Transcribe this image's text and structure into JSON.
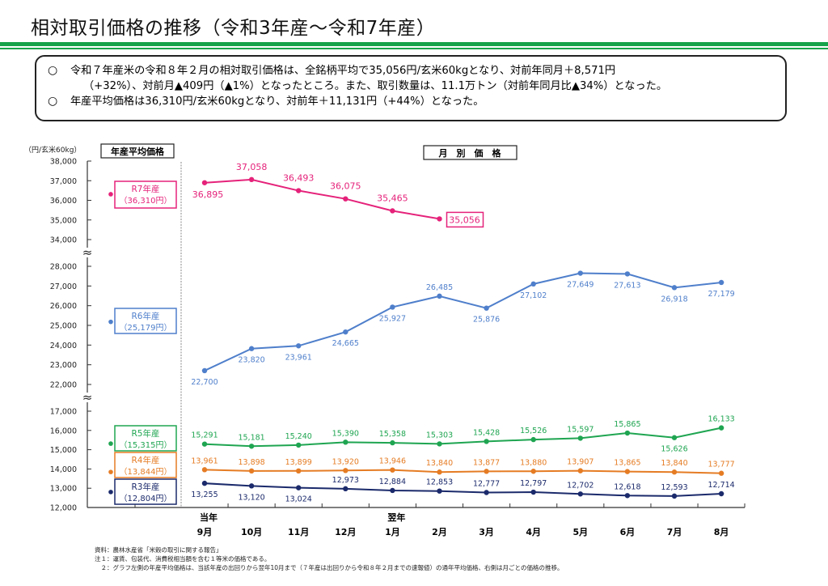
{
  "title": "相対取引価格の推移（令和3年産～令和7年産）",
  "summary": {
    "bullet_symbol": "○",
    "line1": "令和７年産米の令和８年２月の相対取引価格は、全銘柄平均で35,056円/玄米60kgとなり、対前年同月＋8,571円",
    "line1_cont": "（+32%）、対前月▲409円（▲1%）となったところ。また、取引数量は、11.1万トン（対前年同月比▲34%）となった。",
    "line2": "年産平均価格は36,310円/玄米60kgとなり、対前年＋11,131円（+44%）となった。"
  },
  "footer": {
    "source": "資料：農林水産省「米穀の取引に関する報告」",
    "note1": "注１：運賃、包装代、消費税相当額を含む１等米の価格である。",
    "note2": "　２：グラフ左側の年産平均価格は、当該年産の出回りから翌年10月まで（７年産は出回りから令和８年２月までの速報値）の通年平均価格、右側は月ごとの価格の推移。"
  },
  "chart_data": {
    "type": "line",
    "title": "相対取引価格の推移（令和3年産～令和7年産）",
    "ylabel": "（円/玄米60kg）",
    "xlabel": "",
    "left_panel_label": "年産平均価格",
    "right_panel_label": "月　別　価　格",
    "x_year_labels": [
      {
        "index": 0,
        "label": "当年"
      },
      {
        "index": 4,
        "label": "翌年"
      }
    ],
    "categories": [
      "9月",
      "10月",
      "11月",
      "12月",
      "1月",
      "2月",
      "3月",
      "4月",
      "5月",
      "6月",
      "7月",
      "8月"
    ],
    "axis_break_symbol": "≈",
    "y_segments": [
      {
        "ylim": [
          34000,
          38000
        ],
        "ticks": [
          "34,000",
          "35,000",
          "36,000",
          "37,000",
          "38,000"
        ],
        "tick_values": [
          34000,
          35000,
          36000,
          37000,
          38000
        ]
      },
      {
        "ylim": [
          22000,
          28000
        ],
        "ticks": [
          "22,000",
          "23,000",
          "24,000",
          "25,000",
          "26,000",
          "27,000",
          "28,000"
        ],
        "tick_values": [
          22000,
          23000,
          24000,
          25000,
          26000,
          27000,
          28000
        ]
      },
      {
        "ylim": [
          12000,
          17000
        ],
        "ticks": [
          "12,000",
          "13,000",
          "14,000",
          "15,000",
          "16,000",
          "17,000"
        ],
        "tick_values": [
          12000,
          13000,
          14000,
          15000,
          16000,
          17000
        ]
      }
    ],
    "series": [
      {
        "name": "R7年産",
        "annual_avg": 36310,
        "annual_label": "（36,310円）",
        "color": "#e5227a",
        "segment": 0,
        "values": [
          36895,
          37058,
          36493,
          36075,
          35465,
          35056,
          null,
          null,
          null,
          null,
          null,
          null
        ],
        "labels": [
          "36,895",
          "37,058",
          "36,493",
          "36,075",
          "35,465",
          "35,056"
        ],
        "label_pos": [
          "below",
          "above",
          "above",
          "above",
          "above",
          "right-boxed"
        ]
      },
      {
        "name": "R6年産",
        "annual_avg": 25179,
        "annual_label": "（25,179円）",
        "color": "#4f7fcb",
        "segment": 1,
        "values": [
          22700,
          23820,
          23961,
          24665,
          25927,
          26485,
          25876,
          27102,
          27649,
          27613,
          26918,
          27179
        ],
        "labels": [
          "22,700",
          "23,820",
          "23,961",
          "24,665",
          "25,927",
          "26,485",
          "25,876",
          "27,102",
          "27,649",
          "27,613",
          "26,918",
          "27,179"
        ],
        "label_pos": [
          "below",
          "below",
          "below",
          "below",
          "below",
          "above",
          "below",
          "below",
          "below",
          "below",
          "below",
          "below"
        ]
      },
      {
        "name": "R5年産",
        "annual_avg": 15315,
        "annual_label": "（15,315円）",
        "color": "#1fa551",
        "segment": 2,
        "values": [
          15291,
          15181,
          15240,
          15390,
          15358,
          15303,
          15428,
          15526,
          15597,
          15865,
          15626,
          16133
        ],
        "labels": [
          "15,291",
          "15,181",
          "15,240",
          "15,390",
          "15,358",
          "15,303",
          "15,428",
          "15,526",
          "15,597",
          "15,865",
          "15,626",
          "16,133"
        ],
        "label_pos": [
          "above",
          "above",
          "above",
          "above",
          "above",
          "above",
          "above",
          "above",
          "above",
          "above",
          "below",
          "above"
        ]
      },
      {
        "name": "R4年産",
        "annual_avg": 13844,
        "annual_label": "（13,844円）",
        "color": "#e57c24",
        "segment": 2,
        "values": [
          13961,
          13898,
          13899,
          13920,
          13946,
          13840,
          13877,
          13880,
          13907,
          13865,
          13840,
          13777
        ],
        "labels": [
          "13,961",
          "13,898",
          "13,899",
          "13,920",
          "13,946",
          "13,840",
          "13,877",
          "13,880",
          "13,907",
          "13,865",
          "13,840",
          "13,777"
        ],
        "label_pos": [
          "above",
          "above",
          "above",
          "above",
          "above",
          "above",
          "above",
          "above",
          "above",
          "above",
          "above",
          "above"
        ]
      },
      {
        "name": "R3年産",
        "annual_avg": 12804,
        "annual_label": "（12,804円）",
        "color": "#1b2a6b",
        "segment": 2,
        "values": [
          13255,
          13120,
          13024,
          12973,
          12884,
          12853,
          12777,
          12797,
          12702,
          12618,
          12593,
          12714
        ],
        "labels": [
          "13,255",
          "13,120",
          "13,024",
          "12,973",
          "12,884",
          "12,853",
          "12,777",
          "12,797",
          "12,702",
          "12,618",
          "12,593",
          "12,714"
        ],
        "label_pos": [
          "below",
          "below",
          "below",
          "above",
          "above",
          "above",
          "above",
          "above",
          "above",
          "above",
          "above",
          "above"
        ]
      }
    ],
    "grid": false,
    "legend": "left-panel boxes"
  }
}
